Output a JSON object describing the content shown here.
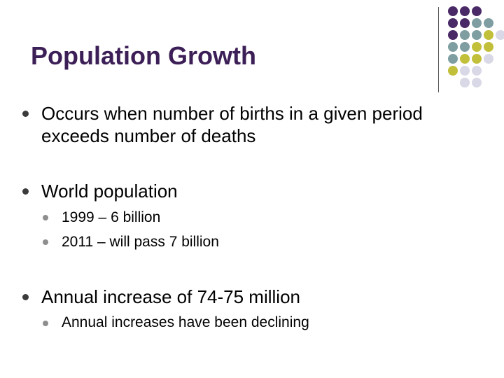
{
  "slide": {
    "title": "Population Growth",
    "accent_color": "#3d1f57",
    "bullets": [
      {
        "lines": [
          "Occurs when number of births in a given period",
          "exceeds number of deaths"
        ],
        "children": []
      },
      {
        "lines": [
          "World population"
        ],
        "children": [
          "1999 – 6 billion",
          "2011 – will pass 7 billion"
        ]
      },
      {
        "lines": [
          "Annual increase of 74-75 million"
        ],
        "children": [
          "Annual increases have been declining"
        ]
      }
    ]
  },
  "decoration": {
    "dot_colors": {
      "purple": "#4a2a66",
      "teal": "#7e9ea1",
      "olive": "#c2bf3a",
      "lavender": "#d9d8e6"
    }
  }
}
